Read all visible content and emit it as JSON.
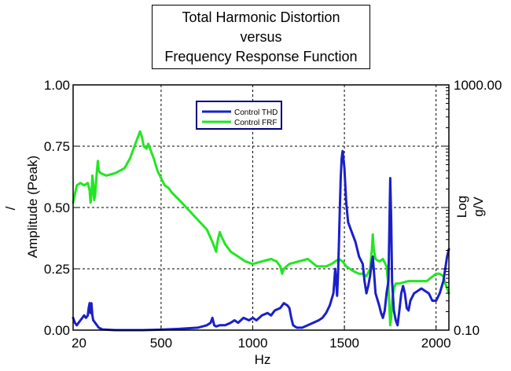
{
  "title_lines": [
    "Total Harmonic Distortion",
    "versus",
    "Frequency Response Function"
  ],
  "colors": {
    "thd": "#1a20c8",
    "frf": "#22e622",
    "grid": "#000000",
    "axis": "#000000",
    "legend_border": "#000080"
  },
  "chart_data": {
    "type": "line",
    "title": "Total Harmonic Distortion versus Frequency Response Function",
    "xlabel": "Hz",
    "ylabel": "Amplitude (Peak)",
    "ylabel_prefix": "/",
    "y2label_line1": "Log",
    "y2label_line2": "g/V",
    "xlim": [
      20,
      2070
    ],
    "ylim": [
      0,
      1
    ],
    "y2lim": [
      0.1,
      1000
    ],
    "y2scale": "log",
    "x_ticks": [
      {
        "value": 20,
        "label": "20"
      },
      {
        "value": 500,
        "label": "500"
      },
      {
        "value": 1000,
        "label": "1000"
      },
      {
        "value": 1500,
        "label": "1500"
      },
      {
        "value": 2000,
        "label": "2000"
      }
    ],
    "y_ticks": [
      {
        "value": 0,
        "label": "0.00"
      },
      {
        "value": 0.25,
        "label": "0.25"
      },
      {
        "value": 0.5,
        "label": "0.50"
      },
      {
        "value": 0.75,
        "label": "0.75"
      },
      {
        "value": 1.0,
        "label": "1.00"
      }
    ],
    "y2_ticks": [
      {
        "value": 0.1,
        "label": "0.10"
      },
      {
        "value": 1000,
        "label": "1000.00"
      }
    ],
    "grid": true,
    "legend_position": "top-center",
    "series": [
      {
        "name": "Control THD",
        "color": "#1a20c8",
        "points": [
          [
            20,
            0.05
          ],
          [
            30,
            0.03
          ],
          [
            40,
            0.02
          ],
          [
            50,
            0.03
          ],
          [
            60,
            0.04
          ],
          [
            70,
            0.05
          ],
          [
            80,
            0.06
          ],
          [
            90,
            0.05
          ],
          [
            100,
            0.06
          ],
          [
            105,
            0.09
          ],
          [
            110,
            0.11
          ],
          [
            115,
            0.07
          ],
          [
            120,
            0.11
          ],
          [
            125,
            0.06
          ],
          [
            130,
            0.04
          ],
          [
            140,
            0.03
          ],
          [
            150,
            0.02
          ],
          [
            160,
            0.01
          ],
          [
            180,
            0.003
          ],
          [
            250,
            0
          ],
          [
            400,
            0
          ],
          [
            500,
            0.002
          ],
          [
            600,
            0.005
          ],
          [
            700,
            0.01
          ],
          [
            750,
            0.02
          ],
          [
            770,
            0.03
          ],
          [
            780,
            0.05
          ],
          [
            790,
            0.02
          ],
          [
            800,
            0.015
          ],
          [
            820,
            0.02
          ],
          [
            850,
            0.02
          ],
          [
            880,
            0.03
          ],
          [
            900,
            0.04
          ],
          [
            920,
            0.03
          ],
          [
            950,
            0.05
          ],
          [
            980,
            0.04
          ],
          [
            1000,
            0.05
          ],
          [
            1020,
            0.04
          ],
          [
            1050,
            0.06
          ],
          [
            1080,
            0.07
          ],
          [
            1100,
            0.06
          ],
          [
            1120,
            0.08
          ],
          [
            1150,
            0.09
          ],
          [
            1170,
            0.11
          ],
          [
            1190,
            0.1
          ],
          [
            1200,
            0.09
          ],
          [
            1210,
            0.05
          ],
          [
            1220,
            0.02
          ],
          [
            1240,
            0.01
          ],
          [
            1270,
            0.01
          ],
          [
            1300,
            0.02
          ],
          [
            1330,
            0.03
          ],
          [
            1360,
            0.04
          ],
          [
            1380,
            0.05
          ],
          [
            1400,
            0.07
          ],
          [
            1420,
            0.1
          ],
          [
            1440,
            0.15
          ],
          [
            1450,
            0.25
          ],
          [
            1455,
            0.2
          ],
          [
            1460,
            0.14
          ],
          [
            1465,
            0.22
          ],
          [
            1470,
            0.35
          ],
          [
            1475,
            0.5
          ],
          [
            1480,
            0.62
          ],
          [
            1485,
            0.7
          ],
          [
            1490,
            0.73
          ],
          [
            1495,
            0.7
          ],
          [
            1500,
            0.66
          ],
          [
            1510,
            0.52
          ],
          [
            1520,
            0.44
          ],
          [
            1540,
            0.4
          ],
          [
            1560,
            0.36
          ],
          [
            1580,
            0.3
          ],
          [
            1600,
            0.27
          ],
          [
            1610,
            0.2
          ],
          [
            1620,
            0.15
          ],
          [
            1630,
            0.18
          ],
          [
            1640,
            0.22
          ],
          [
            1650,
            0.28
          ],
          [
            1655,
            0.3
          ],
          [
            1660,
            0.25
          ],
          [
            1670,
            0.15
          ],
          [
            1690,
            0.1
          ],
          [
            1700,
            0.07
          ],
          [
            1710,
            0.05
          ],
          [
            1720,
            0.08
          ],
          [
            1730,
            0.15
          ],
          [
            1740,
            0.2
          ],
          [
            1745,
            0.4
          ],
          [
            1750,
            0.62
          ],
          [
            1755,
            0.45
          ],
          [
            1760,
            0.2
          ],
          [
            1770,
            0.08
          ],
          [
            1780,
            0.04
          ],
          [
            1790,
            0.02
          ],
          [
            1800,
            0.08
          ],
          [
            1810,
            0.15
          ],
          [
            1820,
            0.18
          ],
          [
            1830,
            0.15
          ],
          [
            1840,
            0.09
          ],
          [
            1850,
            0.08
          ],
          [
            1860,
            0.12
          ],
          [
            1880,
            0.15
          ],
          [
            1900,
            0.16
          ],
          [
            1920,
            0.17
          ],
          [
            1940,
            0.16
          ],
          [
            1960,
            0.15
          ],
          [
            1980,
            0.12
          ],
          [
            2000,
            0.12
          ],
          [
            2020,
            0.15
          ],
          [
            2040,
            0.2
          ],
          [
            2060,
            0.3
          ],
          [
            2070,
            0.33
          ]
        ]
      },
      {
        "name": "Control FRF",
        "color": "#22e622",
        "points": [
          [
            20,
            0.52
          ],
          [
            40,
            0.59
          ],
          [
            60,
            0.6
          ],
          [
            80,
            0.59
          ],
          [
            100,
            0.6
          ],
          [
            110,
            0.57
          ],
          [
            115,
            0.52
          ],
          [
            120,
            0.55
          ],
          [
            125,
            0.63
          ],
          [
            130,
            0.6
          ],
          [
            135,
            0.53
          ],
          [
            140,
            0.55
          ],
          [
            150,
            0.65
          ],
          [
            155,
            0.69
          ],
          [
            160,
            0.65
          ],
          [
            170,
            0.64
          ],
          [
            200,
            0.63
          ],
          [
            250,
            0.64
          ],
          [
            300,
            0.66
          ],
          [
            330,
            0.7
          ],
          [
            350,
            0.74
          ],
          [
            370,
            0.78
          ],
          [
            385,
            0.81
          ],
          [
            395,
            0.79
          ],
          [
            405,
            0.75
          ],
          [
            420,
            0.74
          ],
          [
            430,
            0.76
          ],
          [
            440,
            0.74
          ],
          [
            460,
            0.7
          ],
          [
            480,
            0.65
          ],
          [
            500,
            0.62
          ],
          [
            520,
            0.59
          ],
          [
            540,
            0.58
          ],
          [
            560,
            0.56
          ],
          [
            600,
            0.53
          ],
          [
            650,
            0.49
          ],
          [
            700,
            0.45
          ],
          [
            750,
            0.41
          ],
          [
            780,
            0.36
          ],
          [
            790,
            0.34
          ],
          [
            800,
            0.32
          ],
          [
            810,
            0.37
          ],
          [
            820,
            0.4
          ],
          [
            830,
            0.38
          ],
          [
            850,
            0.35
          ],
          [
            880,
            0.32
          ],
          [
            920,
            0.3
          ],
          [
            960,
            0.28
          ],
          [
            1000,
            0.27
          ],
          [
            1050,
            0.28
          ],
          [
            1100,
            0.29
          ],
          [
            1130,
            0.28
          ],
          [
            1150,
            0.26
          ],
          [
            1160,
            0.23
          ],
          [
            1170,
            0.25
          ],
          [
            1200,
            0.27
          ],
          [
            1250,
            0.28
          ],
          [
            1300,
            0.29
          ],
          [
            1350,
            0.26
          ],
          [
            1400,
            0.26
          ],
          [
            1430,
            0.27
          ],
          [
            1450,
            0.28
          ],
          [
            1470,
            0.29
          ],
          [
            1490,
            0.28
          ],
          [
            1510,
            0.26
          ],
          [
            1550,
            0.24
          ],
          [
            1580,
            0.23
          ],
          [
            1600,
            0.23
          ],
          [
            1620,
            0.22
          ],
          [
            1640,
            0.25
          ],
          [
            1650,
            0.33
          ],
          [
            1655,
            0.39
          ],
          [
            1660,
            0.33
          ],
          [
            1670,
            0.29
          ],
          [
            1690,
            0.28
          ],
          [
            1710,
            0.29
          ],
          [
            1730,
            0.26
          ],
          [
            1740,
            0.18
          ],
          [
            1745,
            0.1
          ],
          [
            1750,
            0.02
          ],
          [
            1755,
            0.05
          ],
          [
            1760,
            0.12
          ],
          [
            1770,
            0.17
          ],
          [
            1780,
            0.19
          ],
          [
            1800,
            0.19
          ],
          [
            1850,
            0.2
          ],
          [
            1900,
            0.2
          ],
          [
            1950,
            0.2
          ],
          [
            2000,
            0.23
          ],
          [
            2020,
            0.23
          ],
          [
            2040,
            0.22
          ],
          [
            2050,
            0.19
          ],
          [
            2060,
            0.17
          ],
          [
            2070,
            0.15
          ]
        ]
      }
    ]
  }
}
